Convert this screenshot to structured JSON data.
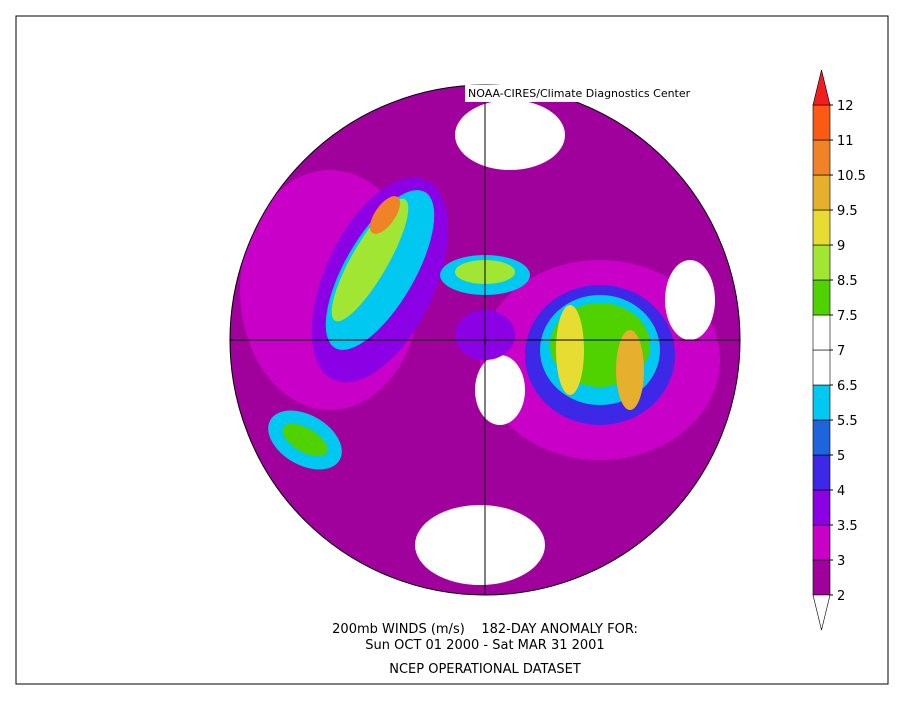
{
  "credit": "NOAA-CIRES/Climate Diagnostics Center",
  "title_lines": [
    "200mb WINDS (m/s)    182-DAY ANOMALY FOR:",
    "Sun OCT 01 2000 - Sat MAR 31 2001",
    "NCEP OPERATIONAL DATASET"
  ],
  "colorbar": {
    "labels": [
      2,
      3,
      3.5,
      4,
      5,
      5.5,
      6.5,
      7,
      7.5,
      8.5,
      9,
      9.5,
      10.5,
      11,
      12
    ],
    "colors": [
      "#a0009b",
      "#c800c8",
      "#8c00e6",
      "#3c28e6",
      "#1e64dc",
      "#00c8f0",
      "#ffffff",
      "#ffffff",
      "#50d200",
      "#a0e632",
      "#e6dc32",
      "#e6af2d",
      "#f08228",
      "#fa5a14"
    ],
    "below_color": "#ffffff",
    "above_color": "#f01e1e"
  }
}
